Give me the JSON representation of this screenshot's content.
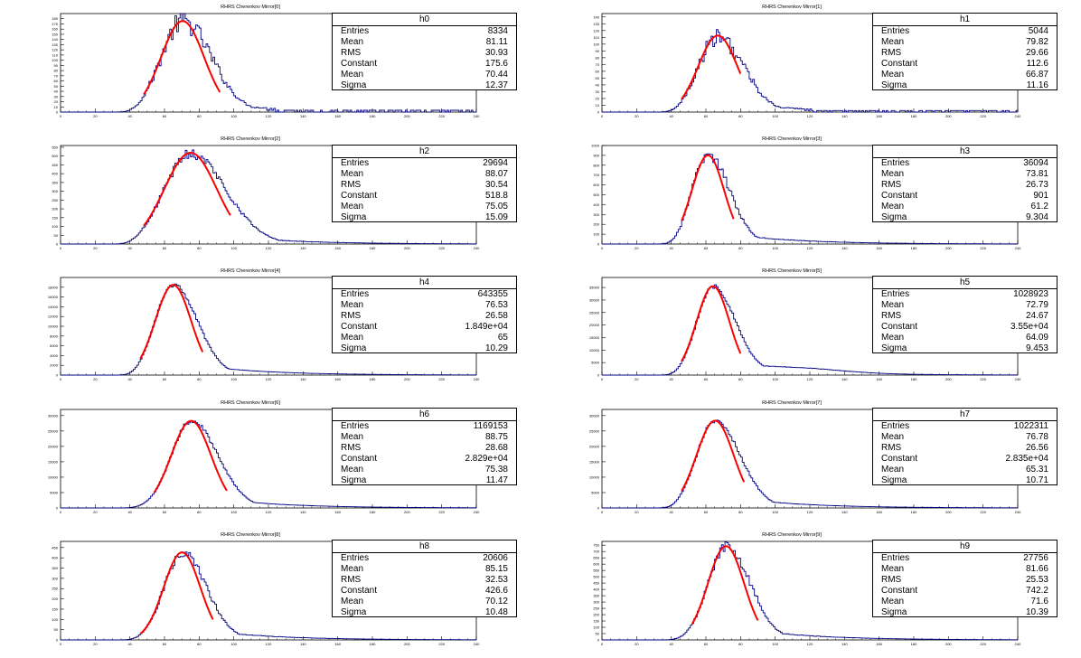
{
  "chart_data": [
    {
      "type": "bar",
      "title": "RHRS Cherenkov Mirror[0]",
      "stats_name": "h0",
      "xlim": [
        0,
        240
      ],
      "ylim": [
        0,
        190
      ],
      "yticks": [
        0,
        10,
        20,
        30,
        40,
        50,
        60,
        70,
        80,
        90,
        100,
        110,
        120,
        130,
        140,
        150,
        160,
        170,
        180
      ],
      "xticks": [
        0,
        20,
        40,
        60,
        80,
        100,
        120,
        140,
        160,
        180,
        200,
        220,
        240
      ],
      "stats": {
        "Entries": "8334",
        "Mean": "81.11",
        "RMS": "30.93",
        "Constant": "175.6",
        "Fit Mean": "70.44",
        "Sigma": "12.37"
      },
      "fit": {
        "constant": 175.6,
        "mean": 70.44,
        "sigma": 12.37,
        "range": [
          48,
          92
        ]
      },
      "peak": 175,
      "tail": [
        0,
        0
      ]
    },
    {
      "type": "bar",
      "title": "RHRS Cherenkov Mirror[1]",
      "stats_name": "h1",
      "xlim": [
        0,
        240
      ],
      "ylim": [
        0,
        145
      ],
      "yticks": [
        0,
        10,
        20,
        30,
        40,
        50,
        60,
        70,
        80,
        90,
        100,
        110,
        120,
        130,
        140
      ],
      "xticks": [
        0,
        20,
        40,
        60,
        80,
        100,
        120,
        140,
        160,
        180,
        200,
        220,
        240
      ],
      "stats": {
        "Entries": "5044",
        "Mean": "79.82",
        "RMS": "29.66",
        "Constant": "112.6",
        "Fit Mean": "66.87",
        "Sigma": "11.16"
      },
      "fit": {
        "constant": 112.6,
        "mean": 66.87,
        "sigma": 11.16,
        "range": [
          46,
          80
        ]
      },
      "peak": 110,
      "tail": [
        0,
        0
      ]
    },
    {
      "type": "bar",
      "title": "RHRS Cherenkov Mirror[2]",
      "stats_name": "h2",
      "xlim": [
        0,
        240
      ],
      "ylim": [
        0,
        560
      ],
      "yticks": [
        0,
        50,
        100,
        150,
        200,
        250,
        300,
        350,
        400,
        450,
        500,
        550
      ],
      "xticks": [
        0,
        20,
        40,
        60,
        80,
        100,
        120,
        140,
        160,
        180,
        200,
        220,
        240
      ],
      "stats": {
        "Entries": "29694",
        "Mean": "88.07",
        "RMS": "30.54",
        "Constant": "518.8",
        "Fit Mean": "75.05",
        "Sigma": "15.09"
      },
      "fit": {
        "constant": 518.8,
        "mean": 75.05,
        "sigma": 15.09,
        "range": [
          48,
          98
        ]
      },
      "peak": 515,
      "tail": [
        0,
        0
      ]
    },
    {
      "type": "bar",
      "title": "RHRS Cherenkov Mirror[3]",
      "stats_name": "h3",
      "xlim": [
        0,
        240
      ],
      "ylim": [
        0,
        1000
      ],
      "yticks": [
        0,
        100,
        200,
        300,
        400,
        500,
        600,
        700,
        800,
        900,
        1000
      ],
      "xticks": [
        0,
        20,
        40,
        60,
        80,
        100,
        120,
        140,
        160,
        180,
        200,
        220,
        240
      ],
      "stats": {
        "Entries": "36094",
        "Mean": "73.81",
        "RMS": "26.73",
        "Constant": "901",
        "Fit Mean": "61.2",
        "Sigma": "9.304"
      },
      "fit": {
        "constant": 901,
        "mean": 61.2,
        "sigma": 9.304,
        "range": [
          46,
          76
        ]
      },
      "peak": 905,
      "tail": [
        0,
        0
      ]
    },
    {
      "type": "bar",
      "title": "RHRS Cherenkov Mirror[4]",
      "stats_name": "h4",
      "xlim": [
        0,
        240
      ],
      "ylim": [
        0,
        20000
      ],
      "yticks": [
        0,
        2000,
        4000,
        6000,
        8000,
        10000,
        12000,
        14000,
        16000,
        18000
      ],
      "xticks": [
        0,
        20,
        40,
        60,
        80,
        100,
        120,
        140,
        160,
        180,
        200,
        220,
        240
      ],
      "stats": {
        "Entries": "643355",
        "Mean": "76.53",
        "RMS": "26.58",
        "Constant": "1.849e+04",
        "Fit Mean": "65",
        "Sigma": "10.29"
      },
      "fit": {
        "constant": 18490,
        "mean": 65,
        "sigma": 10.29,
        "range": [
          46,
          82
        ]
      },
      "peak": 18500,
      "tail": [
        0,
        0
      ]
    },
    {
      "type": "bar",
      "title": "RHRS Cherenkov Mirror[5]",
      "stats_name": "h5",
      "xlim": [
        0,
        240
      ],
      "ylim": [
        0,
        39000
      ],
      "yticks": [
        0,
        5000,
        10000,
        15000,
        20000,
        25000,
        30000,
        35000
      ],
      "xticks": [
        0,
        20,
        40,
        60,
        80,
        100,
        120,
        140,
        160,
        180,
        200,
        220,
        240
      ],
      "stats": {
        "Entries": "1028923",
        "Mean": "72.79",
        "RMS": "24.67",
        "Constant": "3.55e+04",
        "Fit Mean": "64.09",
        "Sigma": "9.453"
      },
      "fit": {
        "constant": 35500,
        "mean": 64.09,
        "sigma": 9.453,
        "range": [
          46,
          80
        ]
      },
      "peak": 35500,
      "tail": [
        1500,
        0
      ]
    },
    {
      "type": "bar",
      "title": "RHRS Cherenkov Mirror[6]",
      "stats_name": "h6",
      "xlim": [
        0,
        240
      ],
      "ylim": [
        0,
        32000
      ],
      "yticks": [
        0,
        5000,
        10000,
        15000,
        20000,
        25000,
        30000
      ],
      "xticks": [
        0,
        20,
        40,
        60,
        80,
        100,
        120,
        140,
        160,
        180,
        200,
        220,
        240
      ],
      "stats": {
        "Entries": "1169153",
        "Mean": "88.75",
        "RMS": "28.68",
        "Constant": "2.829e+04",
        "Fit Mean": "75.38",
        "Sigma": "11.47"
      },
      "fit": {
        "constant": 28290,
        "mean": 75.38,
        "sigma": 11.47,
        "range": [
          54,
          96
        ]
      },
      "peak": 28300,
      "tail": [
        0,
        0
      ]
    },
    {
      "type": "bar",
      "title": "RHRS Cherenkov Mirror[7]",
      "stats_name": "h7",
      "xlim": [
        0,
        240
      ],
      "ylim": [
        0,
        32000
      ],
      "yticks": [
        0,
        5000,
        10000,
        15000,
        20000,
        25000,
        30000
      ],
      "xticks": [
        0,
        20,
        40,
        60,
        80,
        100,
        120,
        140,
        160,
        180,
        200,
        220,
        240
      ],
      "stats": {
        "Entries": "1022311",
        "Mean": "76.78",
        "RMS": "26.56",
        "Constant": "2.835e+04",
        "Fit Mean": "65.31",
        "Sigma": "10.71"
      },
      "fit": {
        "constant": 28350,
        "mean": 65.31,
        "sigma": 10.71,
        "range": [
          46,
          82
        ]
      },
      "peak": 28400,
      "tail": [
        0,
        0
      ]
    },
    {
      "type": "bar",
      "title": "RHRS Cherenkov Mirror[8]",
      "stats_name": "h8",
      "xlim": [
        0,
        240
      ],
      "ylim": [
        0,
        480
      ],
      "yticks": [
        0,
        50,
        100,
        150,
        200,
        250,
        300,
        350,
        400,
        450
      ],
      "xticks": [
        0,
        20,
        40,
        60,
        80,
        100,
        120,
        140,
        160,
        180,
        200,
        220,
        240
      ],
      "stats": {
        "Entries": "20606",
        "Mean": "85.15",
        "RMS": "32.53",
        "Constant": "426.6",
        "Fit Mean": "70.12",
        "Sigma": "10.48"
      },
      "fit": {
        "constant": 426.6,
        "mean": 70.12,
        "sigma": 10.48,
        "range": [
          46,
          88
        ]
      },
      "peak": 425,
      "tail": [
        0,
        0
      ]
    },
    {
      "type": "bar",
      "title": "RHRS Cherenkov Mirror[9]",
      "stats_name": "h9",
      "xlim": [
        0,
        240
      ],
      "ylim": [
        0,
        780
      ],
      "yticks": [
        0,
        50,
        100,
        150,
        200,
        250,
        300,
        350,
        400,
        450,
        500,
        550,
        600,
        650,
        700,
        750
      ],
      "xticks": [
        0,
        20,
        40,
        60,
        80,
        100,
        120,
        140,
        160,
        180,
        200,
        220,
        240
      ],
      "stats": {
        "Entries": "27756",
        "Mean": "81.66",
        "RMS": "25.53",
        "Constant": "742.2",
        "Fit Mean": "71.6",
        "Sigma": "10.39"
      },
      "fit": {
        "constant": 742.2,
        "mean": 71.6,
        "sigma": 10.39,
        "range": [
          52,
          90
        ]
      },
      "peak": 742,
      "tail": [
        0,
        0
      ]
    }
  ],
  "colors": {
    "histogram": "#000080",
    "fit": "#ff0000",
    "axis": "#000000"
  },
  "stat_labels": [
    "Entries",
    "Mean",
    "RMS",
    "Constant",
    "Mean",
    "Sigma"
  ],
  "stat_keys": [
    "Entries",
    "Mean",
    "RMS",
    "Constant",
    "Fit Mean",
    "Sigma"
  ]
}
